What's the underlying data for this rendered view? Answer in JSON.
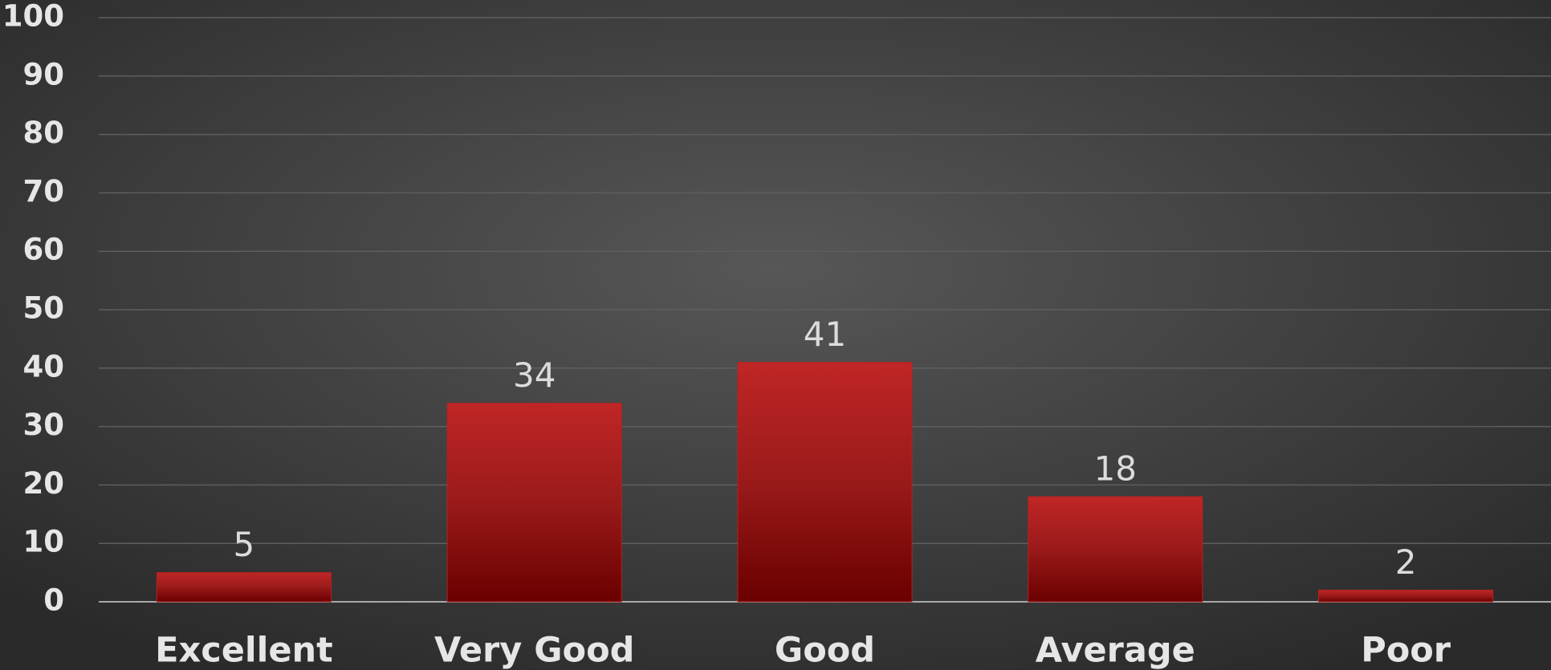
{
  "chart_data": {
    "type": "bar",
    "categories": [
      "Excellent",
      "Very Good",
      "Good",
      "Average",
      "Poor"
    ],
    "values": [
      5,
      34,
      41,
      18,
      2
    ],
    "color": "#b32222",
    "ylim": [
      0,
      100
    ],
    "yticks": [
      0,
      10,
      20,
      30,
      40,
      50,
      60,
      70,
      80,
      90,
      100
    ],
    "grid": true
  }
}
